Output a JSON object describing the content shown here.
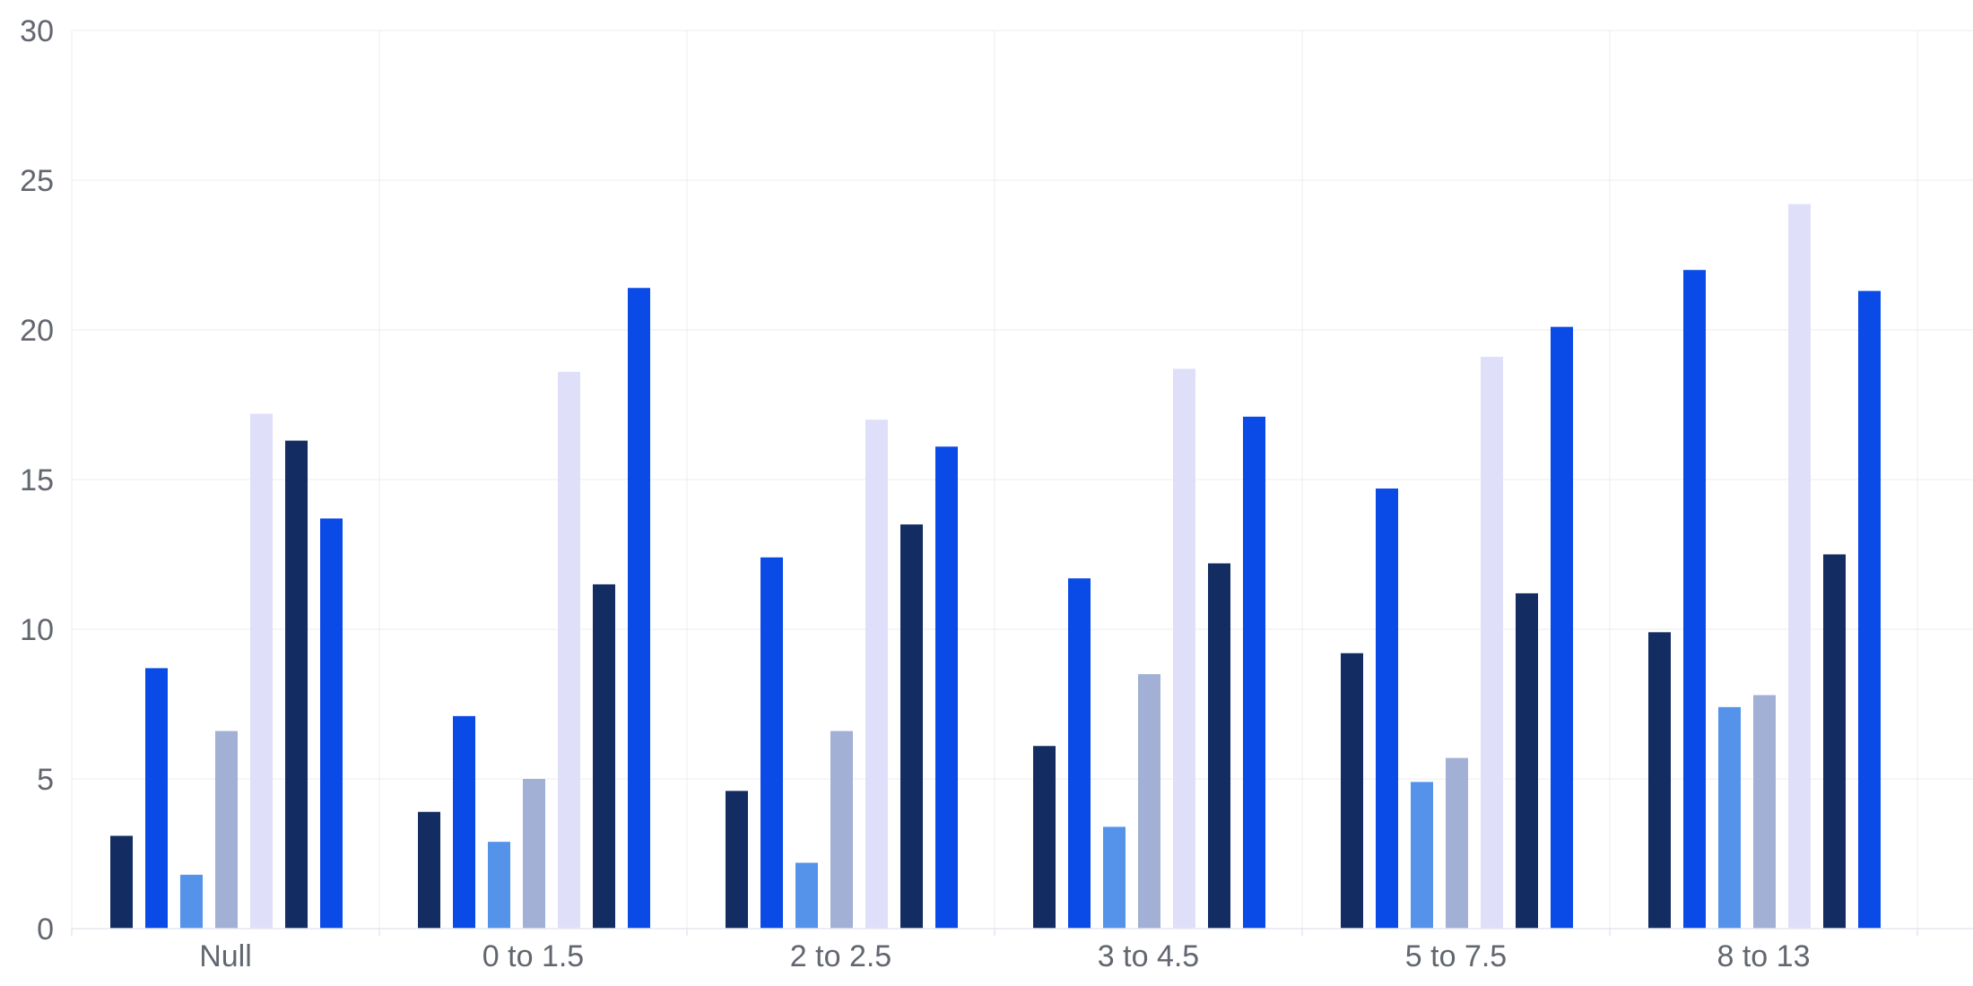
{
  "chart_data": {
    "type": "bar",
    "categories": [
      "Null",
      "0 to 1.5",
      "2 to 2.5",
      "3 to 4.5",
      "5 to 7.5",
      "8 to 13"
    ],
    "ylim": [
      0,
      30
    ],
    "yticks": [
      0,
      5,
      10,
      15,
      20,
      25,
      30
    ],
    "grid": true,
    "legend": "none",
    "title": "",
    "xlabel": "",
    "ylabel": "",
    "series": [
      {
        "color": "#132c62",
        "values": [
          3.1,
          3.9,
          4.6,
          6.1,
          9.2,
          9.9
        ]
      },
      {
        "color": "#0a4ae6",
        "values": [
          8.7,
          7.1,
          12.4,
          11.7,
          14.7,
          22.0
        ]
      },
      {
        "color": "#5593ea",
        "values": [
          1.8,
          2.9,
          2.2,
          3.4,
          4.9,
          7.4
        ]
      },
      {
        "color": "#a1b0d4",
        "values": [
          6.6,
          5.0,
          6.6,
          8.5,
          5.7,
          7.8
        ]
      },
      {
        "color": "#e0dffa",
        "values": [
          17.2,
          18.6,
          17.0,
          18.7,
          19.1,
          24.2
        ]
      },
      {
        "color": "#132c62",
        "values": [
          16.3,
          11.5,
          13.5,
          12.2,
          11.2,
          12.5
        ]
      },
      {
        "color": "#0a4ae6",
        "values": [
          13.7,
          21.4,
          16.1,
          17.1,
          20.1,
          21.3
        ]
      }
    ]
  }
}
